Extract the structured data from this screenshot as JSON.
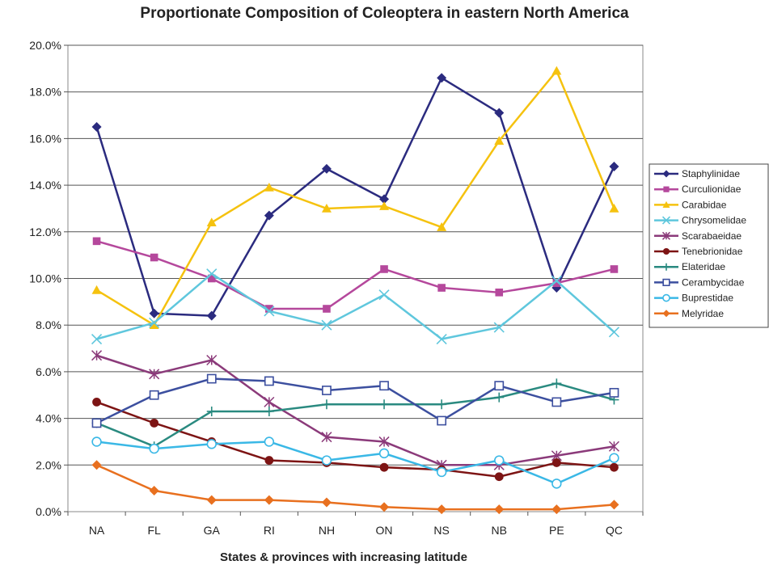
{
  "chart_data": {
    "type": "line",
    "title": "Proportionate Composition of Coleoptera in eastern North America",
    "xlabel": "States & provinces with increasing latitude",
    "ylabel": "",
    "categories": [
      "NA",
      "FL",
      "GA",
      "RI",
      "NH",
      "ON",
      "NS",
      "NB",
      "PE",
      "QC"
    ],
    "ylim": [
      0,
      20
    ],
    "yticks": [
      "0.0%",
      "2.0%",
      "4.0%",
      "6.0%",
      "8.0%",
      "10.0%",
      "12.0%",
      "14.0%",
      "16.0%",
      "18.0%",
      "20.0%"
    ],
    "grid": "horizontal",
    "legend_position": "right",
    "series": [
      {
        "name": "Staphylinidae",
        "color": "#2b2b7f",
        "marker": "diamond",
        "values": [
          16.5,
          8.5,
          8.4,
          12.7,
          14.7,
          13.4,
          18.6,
          17.1,
          9.6,
          14.8
        ]
      },
      {
        "name": "Curculionidae",
        "color": "#b5489c",
        "marker": "square",
        "values": [
          11.6,
          10.9,
          10.0,
          8.7,
          8.7,
          10.4,
          9.6,
          9.4,
          9.8,
          10.4
        ]
      },
      {
        "name": "Carabidae",
        "color": "#f5c20f",
        "marker": "triangle",
        "values": [
          9.5,
          8.0,
          12.4,
          13.9,
          13.0,
          13.1,
          12.2,
          15.9,
          18.9,
          13.0
        ]
      },
      {
        "name": "Chrysomelidae",
        "color": "#5fc7dd",
        "marker": "x",
        "values": [
          7.4,
          8.1,
          10.2,
          8.6,
          8.0,
          9.3,
          7.4,
          7.9,
          9.9,
          7.7
        ]
      },
      {
        "name": "Scarabaeidae",
        "color": "#8b3a7a",
        "marker": "star",
        "values": [
          6.7,
          5.9,
          6.5,
          4.7,
          3.2,
          3.0,
          2.0,
          2.0,
          2.4,
          2.8
        ]
      },
      {
        "name": "Tenebrionidae",
        "color": "#7d1414",
        "marker": "circle-filled",
        "values": [
          4.7,
          3.8,
          3.0,
          2.2,
          2.1,
          1.9,
          1.8,
          1.5,
          2.1,
          1.9
        ]
      },
      {
        "name": "Elateridae",
        "color": "#2a8a80",
        "marker": "plus",
        "values": [
          3.8,
          2.8,
          4.3,
          4.3,
          4.6,
          4.6,
          4.6,
          4.9,
          5.5,
          4.8
        ]
      },
      {
        "name": "Cerambycidae",
        "color": "#3c4f9f",
        "marker": "square-open",
        "values": [
          3.8,
          5.0,
          5.7,
          5.6,
          5.2,
          5.4,
          3.9,
          5.4,
          4.7,
          5.1
        ]
      },
      {
        "name": "Buprestidae",
        "color": "#3ab8e6",
        "marker": "circle-open",
        "values": [
          3.0,
          2.7,
          2.9,
          3.0,
          2.2,
          2.5,
          1.7,
          2.2,
          1.2,
          2.3
        ]
      },
      {
        "name": "Melyridae",
        "color": "#e8701f",
        "marker": "diamond",
        "values": [
          2.0,
          0.9,
          0.5,
          0.5,
          0.4,
          0.2,
          0.1,
          0.1,
          0.1,
          0.3
        ]
      }
    ]
  }
}
